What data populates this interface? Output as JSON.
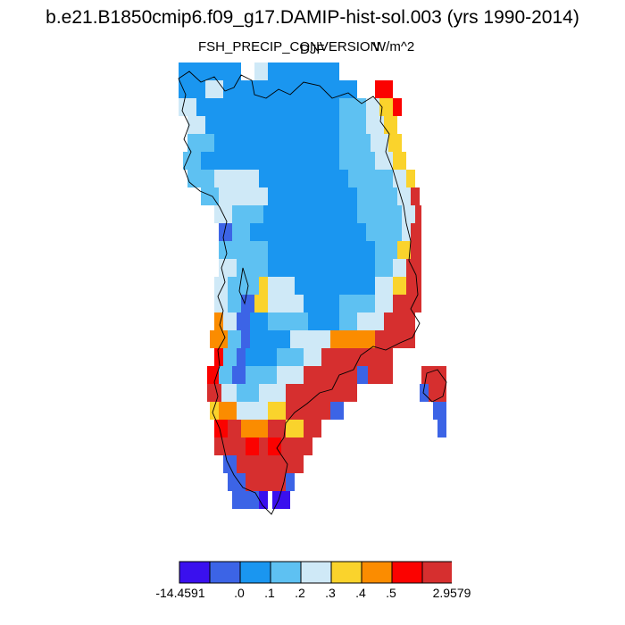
{
  "title": "b.e21.B1850cmip6.f09_g17.DAMIP-hist-sol.003 (yrs 1990-2014)",
  "variable": "FSH_PRECIP_CONVERSION",
  "season": "DJF",
  "units": "W/m^2",
  "colors": {
    "c0": "#3a10ee",
    "c1": "#3c64e6",
    "c2": "#1a96f0",
    "c3": "#5ec1f2",
    "c4": "#cfe9f7",
    "c5": "#fad32c",
    "c6": "#fb8c00",
    "c7": "#fb0200",
    "c8": "#d62f2f"
  },
  "colorbar": {
    "labels": [
      "-14.4591",
      ".0",
      ".1",
      ".2",
      ".3",
      ".4",
      ".5",
      "2.9579"
    ]
  }
}
